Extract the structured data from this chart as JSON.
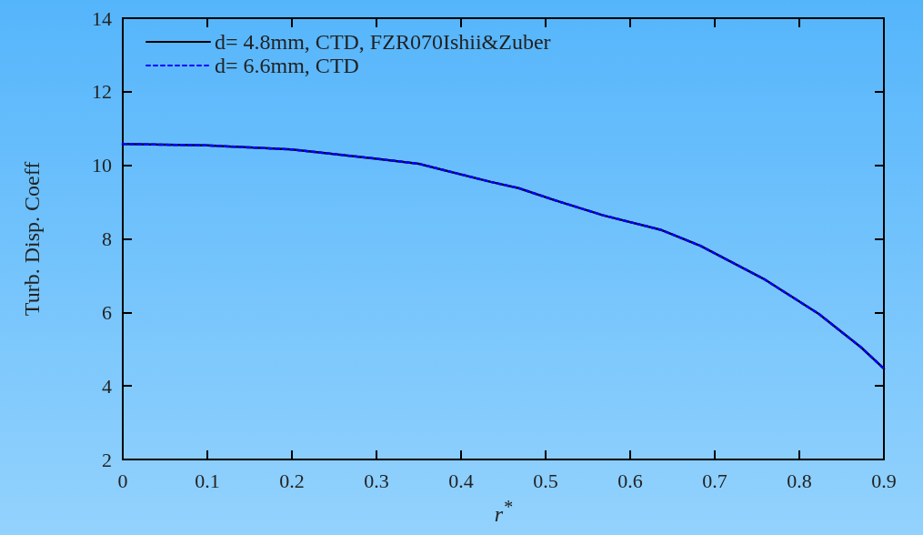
{
  "chart_data": {
    "type": "line",
    "xlabel": "r$^{*}$",
    "ylabel": "Turb. Disp. Coeff",
    "x": [
      0,
      0.1,
      0.2,
      0.3,
      0.35,
      0.435,
      0.468,
      0.511,
      0.568,
      0.637,
      0.683,
      0.758,
      0.823,
      0.873,
      0.9
    ],
    "series": [
      {
        "name": "d= 4.8mm, CTD, FZR070Ishii&Zuber",
        "color": "#000000",
        "line_style": "solid",
        "values": [
          10.58,
          10.54,
          10.43,
          10.18,
          10.04,
          9.55,
          9.38,
          9.05,
          8.64,
          8.24,
          7.81,
          6.91,
          5.96,
          5.05,
          4.47
        ]
      },
      {
        "name": "d= 6.6mm, CTD",
        "color": "#0000ff",
        "line_style": "dashed",
        "values": [
          10.58,
          10.54,
          10.43,
          10.18,
          10.04,
          9.55,
          9.38,
          9.05,
          8.64,
          8.24,
          7.81,
          6.91,
          5.96,
          5.05,
          4.47
        ]
      }
    ],
    "xlim": [
      0,
      0.9
    ],
    "xticks": [
      0,
      0.1,
      0.2,
      0.3,
      0.4,
      0.5,
      0.6,
      0.7,
      0.8,
      0.9
    ],
    "ylim": [
      2,
      14
    ],
    "yticks": [
      2,
      4,
      6,
      8,
      10,
      12,
      14
    ],
    "grid": false,
    "legend": "top left",
    "marker": "none"
  }
}
